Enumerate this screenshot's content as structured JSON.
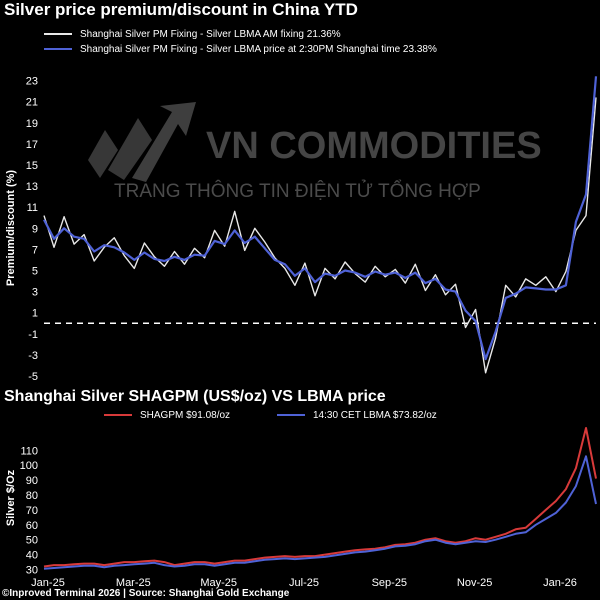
{
  "header": {
    "title": "Silver price premium/discount in China YTD"
  },
  "watermark": {
    "brand": "VN COMMODITIES",
    "tagline": "TRANG THÔNG TIN ĐIỆN TỬ TỔNG HỢP"
  },
  "footer": {
    "text": "©Inproved Terminal 2026 | Source: Shanghai Gold Exchange"
  },
  "colors": {
    "background": "#000000",
    "white_series": "#e8e8e8",
    "blue_series": "#4f62d6",
    "red_series": "#d83a3a",
    "zero_line": "#ffffff"
  },
  "chart_data": [
    {
      "type": "line",
      "title": "Silver price premium/discount in China YTD",
      "ylabel": "Premium/discount (%)",
      "xlabel": "",
      "ylim": [
        -5,
        24
      ],
      "yticks": [
        -5,
        -3,
        -1,
        1,
        3,
        5,
        7,
        9,
        11,
        13,
        15,
        17,
        19,
        21,
        23
      ],
      "legend_position": "top-left",
      "reference_line": {
        "y": 0,
        "style": "dashed"
      },
      "x": [
        0,
        1,
        2,
        3,
        4,
        5,
        6,
        7,
        8,
        9,
        10,
        11,
        12,
        13,
        14,
        15,
        16,
        17,
        18,
        19,
        20,
        21,
        22,
        23,
        24,
        25,
        26,
        27,
        28,
        29,
        30,
        31,
        32,
        33,
        34,
        35,
        36,
        37,
        38,
        39,
        40,
        41,
        42,
        43,
        44,
        45,
        46,
        47,
        48,
        49,
        50,
        51,
        52,
        53,
        54,
        55
      ],
      "series": [
        {
          "name": "Shanghai Silver PM Fixing - Silver LBMA AM fixing 21.36%",
          "values": [
            10.2,
            7.2,
            10.1,
            7.5,
            8.4,
            5.9,
            7.2,
            8.1,
            6.4,
            5.2,
            7.6,
            6.3,
            5.4,
            6.8,
            5.6,
            7.1,
            6.2,
            8.8,
            7.3,
            10.6,
            6.9,
            9.0,
            7.7,
            6.2,
            5.2,
            3.6,
            5.7,
            2.6,
            5.2,
            4.2,
            5.8,
            4.7,
            3.9,
            5.4,
            4.4,
            5.1,
            3.8,
            5.6,
            3.1,
            4.6,
            2.7,
            3.7,
            -0.4,
            1.3,
            -4.7,
            -1.4,
            3.6,
            2.5,
            4.2,
            3.6,
            4.4,
            3.0,
            4.9,
            8.8,
            10.2,
            21.4
          ]
        },
        {
          "name": "Shanghai Silver PM Fixing - Silver LBMA price at 2:30PM Shanghai time 23.38%",
          "values": [
            9.8,
            8.0,
            9.0,
            8.2,
            8.0,
            6.8,
            7.4,
            7.2,
            6.7,
            6.0,
            6.7,
            6.1,
            5.9,
            6.3,
            6.0,
            6.5,
            6.4,
            7.8,
            7.5,
            8.8,
            7.6,
            8.2,
            7.1,
            6.0,
            5.6,
            4.5,
            5.2,
            3.9,
            4.7,
            4.5,
            5.0,
            4.8,
            4.4,
            4.9,
            4.6,
            4.8,
            4.3,
            4.8,
            3.8,
            4.2,
            3.2,
            3.0,
            1.2,
            0.2,
            -3.4,
            -0.8,
            2.4,
            2.8,
            3.4,
            3.3,
            3.2,
            3.2,
            3.6,
            9.6,
            12.2,
            23.4
          ]
        }
      ]
    },
    {
      "type": "line",
      "title": "Shanghai Silver SHAGPM (US$/oz) VS LBMA price",
      "ylabel": "Silver $/Oz",
      "xlabel": "",
      "ylim": [
        27,
        127
      ],
      "yticks": [
        30,
        40,
        50,
        60,
        70,
        80,
        90,
        100,
        110
      ],
      "xticks": [
        "Jan-25",
        "Mar-25",
        "May-25",
        "Jul-25",
        "Sep-25",
        "Nov-25",
        "Jan-26"
      ],
      "legend_position": "top",
      "x": [
        0,
        1,
        2,
        3,
        4,
        5,
        6,
        7,
        8,
        9,
        10,
        11,
        12,
        13,
        14,
        15,
        16,
        17,
        18,
        19,
        20,
        21,
        22,
        23,
        24,
        25,
        26,
        27,
        28,
        29,
        30,
        31,
        32,
        33,
        34,
        35,
        36,
        37,
        38,
        39,
        40,
        41,
        42,
        43,
        44,
        45,
        46,
        47,
        48,
        49,
        50,
        51,
        52,
        53,
        54,
        55
      ],
      "series": [
        {
          "name": "SHAGPM $91.08/oz",
          "values": [
            32,
            33,
            33,
            33.5,
            34,
            34,
            33,
            34,
            35,
            35,
            35.5,
            36,
            35,
            33,
            34,
            35,
            35,
            34,
            35,
            36,
            36,
            37,
            38,
            38.5,
            39,
            38.5,
            39,
            39,
            40,
            41,
            42,
            43,
            43.5,
            44,
            45,
            46.5,
            47,
            48,
            50,
            51,
            49,
            48,
            49,
            51,
            50,
            52,
            54,
            57,
            58,
            64,
            70,
            76,
            84,
            98,
            125,
            91
          ]
        },
        {
          "name": "14:30 CET LBMA $73.82/oz",
          "values": [
            30.5,
            31,
            31.5,
            32,
            32.5,
            32.5,
            31.5,
            32.5,
            33,
            33.5,
            34,
            34.5,
            33,
            32,
            32.5,
            33.5,
            33.5,
            32.5,
            33.5,
            34.5,
            34.5,
            35.5,
            36.5,
            37,
            37.5,
            37,
            37.5,
            38,
            38.5,
            39.5,
            40.5,
            41.5,
            42,
            43,
            44,
            45.5,
            46,
            47,
            49,
            50,
            48,
            47,
            48,
            49,
            48.5,
            50,
            52,
            54,
            55,
            60,
            64,
            68,
            75,
            86,
            106,
            74
          ]
        }
      ]
    }
  ]
}
